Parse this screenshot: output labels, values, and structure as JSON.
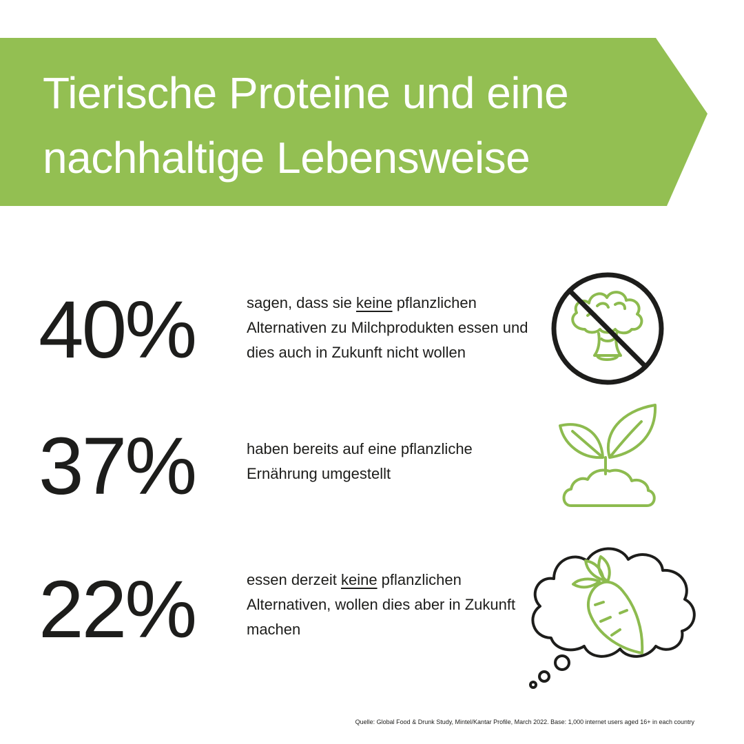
{
  "colors": {
    "banner": "#93bf52",
    "icon_green": "#8dbb4f",
    "dark": "#1d1d1b",
    "title_text": "#ffffff"
  },
  "header": {
    "title_line1": "Tierische Proteine und eine",
    "title_line2": "nachhaltige Lebensweise"
  },
  "stats": [
    {
      "value": "40%",
      "text_before": "sagen, dass sie ",
      "text_emphasis": "keine",
      "text_after": " pflanzlichen Alternativen zu Milchprodukten essen und dies auch in Zukunft nicht wollen",
      "icon": "no-broccoli-icon"
    },
    {
      "value": "37%",
      "text": "haben bereits auf eine pflanzliche Ernährung umgestellt",
      "icon": "sprout-icon"
    },
    {
      "value": "22%",
      "text_before": "essen derzeit ",
      "text_emphasis": "keine",
      "text_after": " pflanzlichen Alternativen, wollen dies aber in Zukunft machen",
      "icon": "carrot-thought-icon"
    }
  ],
  "footer": {
    "source": "Quelle: Global Food & Drunk Study, Mintel/Kantar Profile, March 2022. Base: 1,000 internet users aged 16+ in each country"
  }
}
